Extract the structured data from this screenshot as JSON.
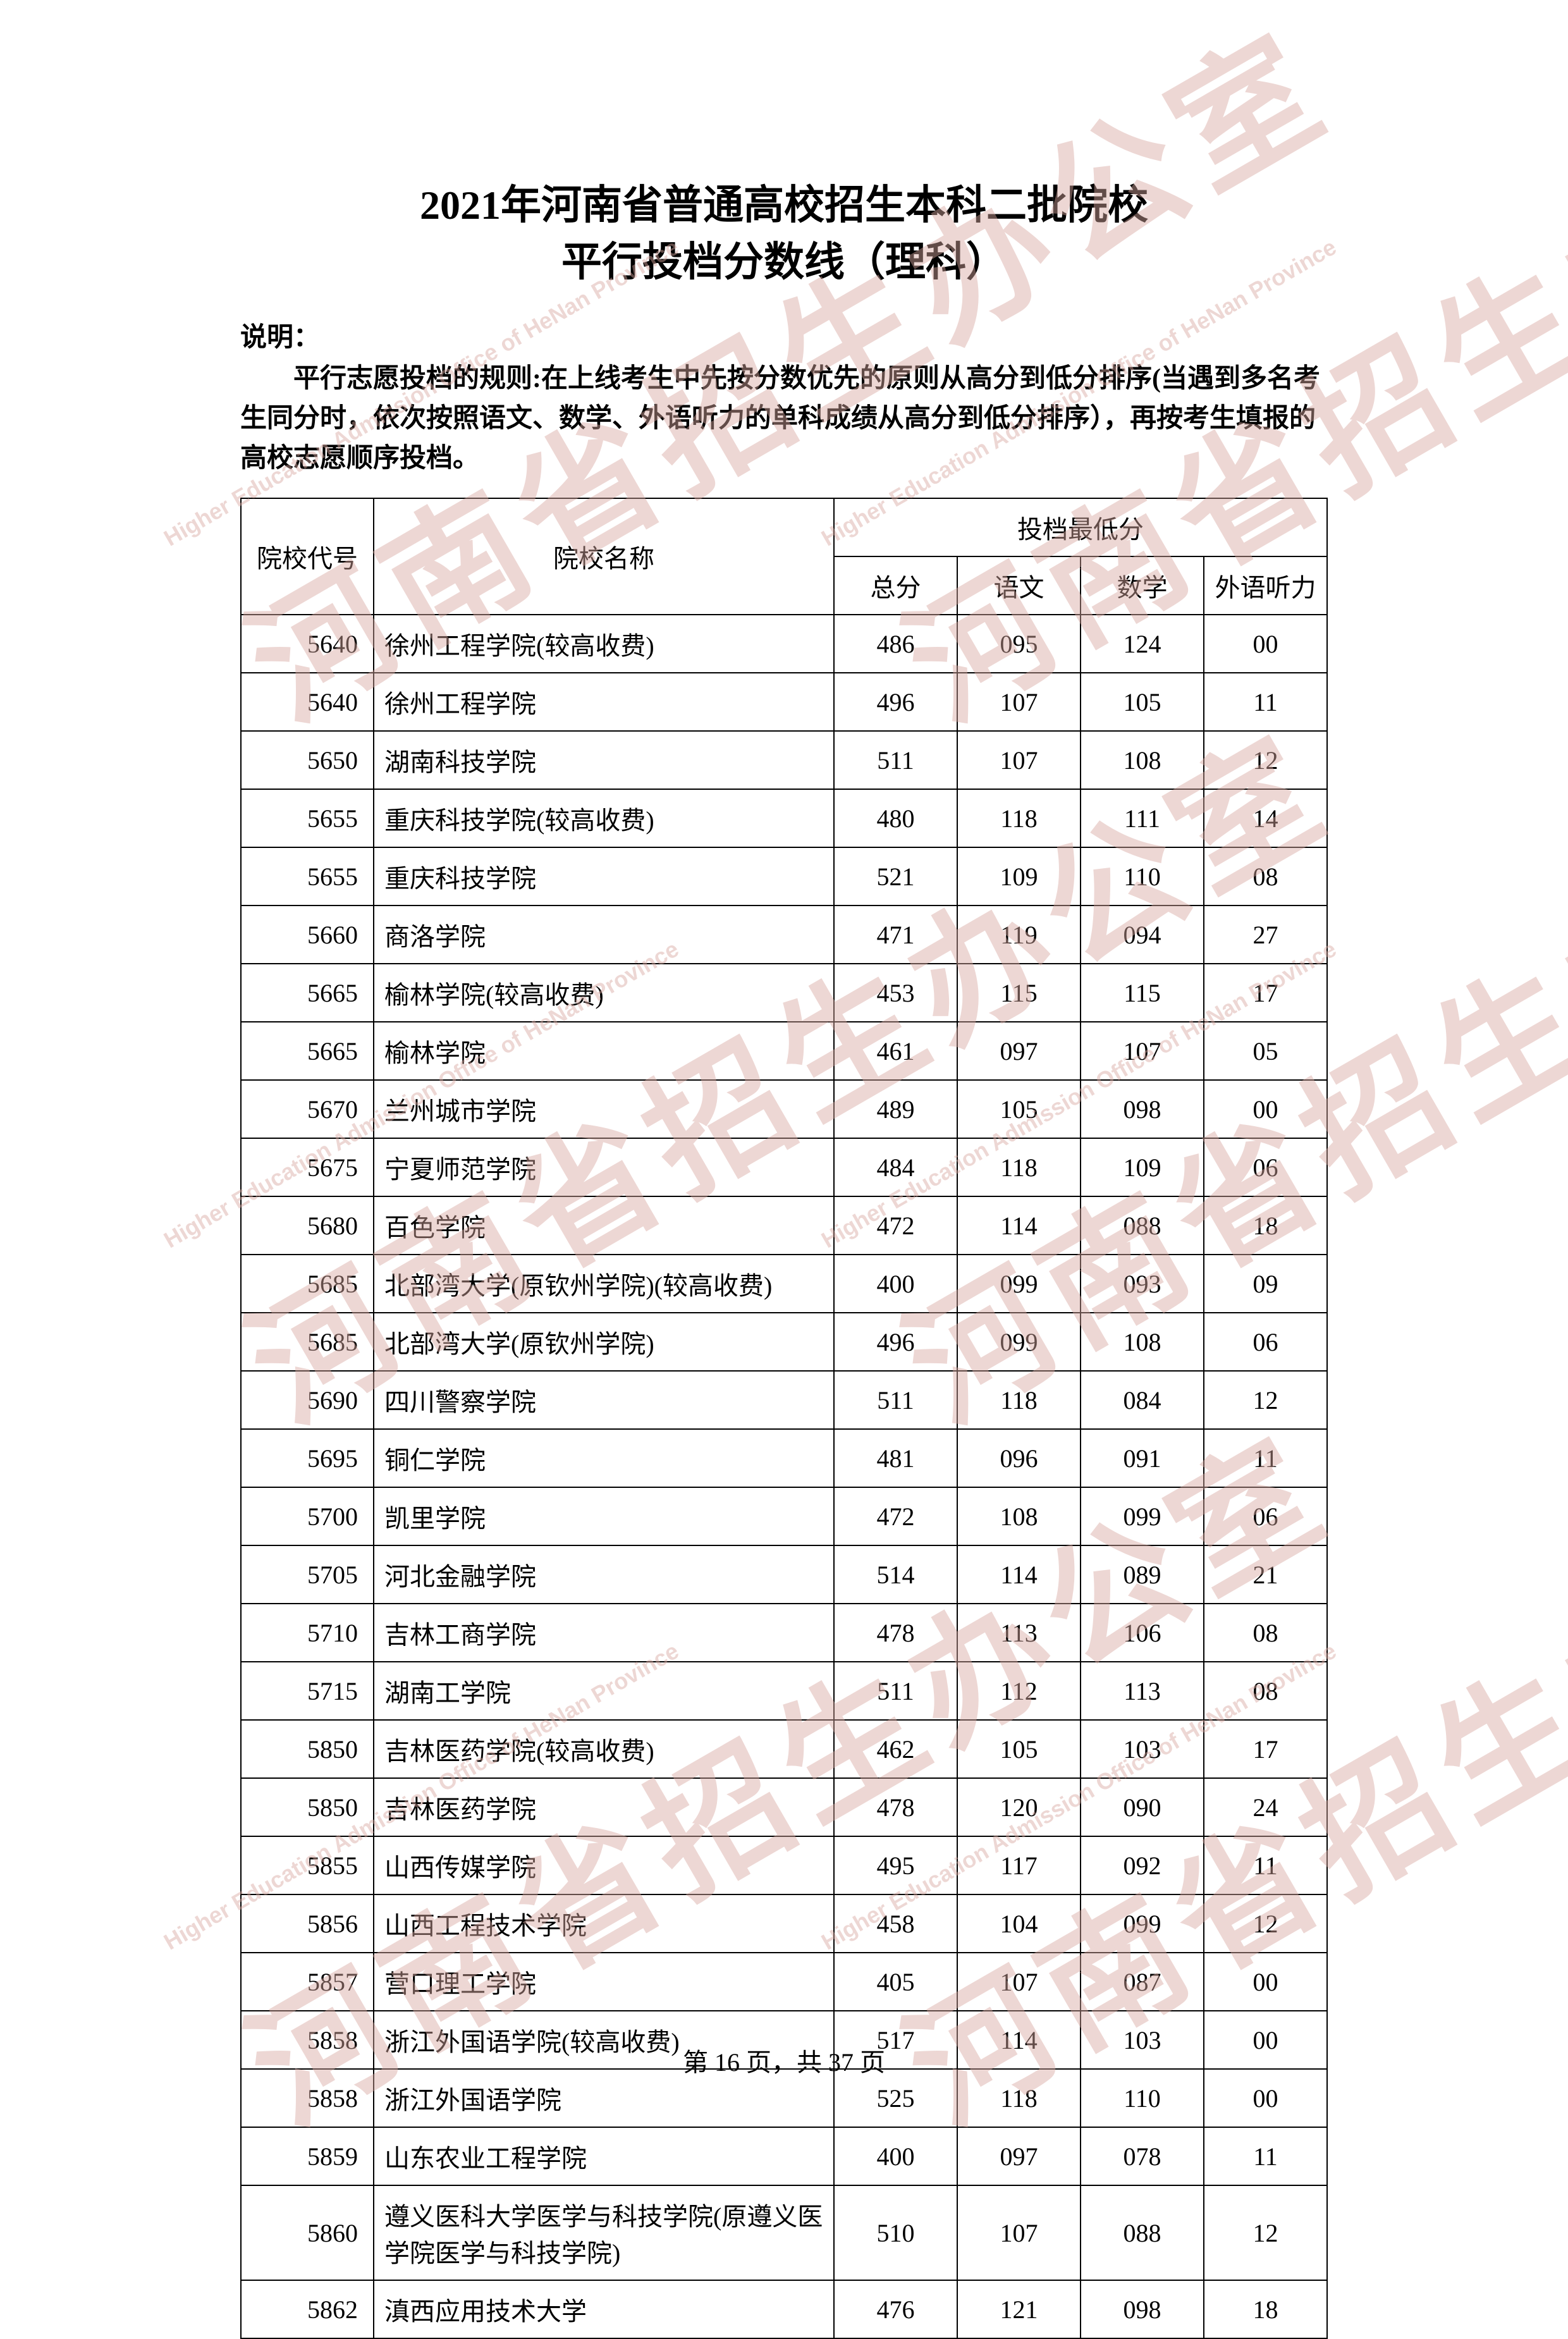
{
  "title": {
    "line1": "2021年河南省普通高校招生本科二批院校",
    "line2": "平行投档分数线（理科）"
  },
  "description": {
    "label": "说明：",
    "text": "平行志愿投档的规则:在上线考生中先按分数优先的原则从高分到低分排序(当遇到多名考生同分时，依次按照语文、数学、外语听力的单科成绩从高分到低分排序），再按考生填报的高校志愿顺序投档。"
  },
  "table": {
    "headers": {
      "code": "院校代号",
      "name": "院校名称",
      "group": "投档最低分",
      "total": "总分",
      "chinese": "语文",
      "math": "数学",
      "listening": "外语听力"
    },
    "rows": [
      {
        "code": "5640",
        "name": "徐州工程学院(较高收费)",
        "total": "486",
        "chinese": "095",
        "math": "124",
        "listening": "00"
      },
      {
        "code": "5640",
        "name": "徐州工程学院",
        "total": "496",
        "chinese": "107",
        "math": "105",
        "listening": "11"
      },
      {
        "code": "5650",
        "name": "湖南科技学院",
        "total": "511",
        "chinese": "107",
        "math": "108",
        "listening": "12"
      },
      {
        "code": "5655",
        "name": "重庆科技学院(较高收费)",
        "total": "480",
        "chinese": "118",
        "math": "111",
        "listening": "14"
      },
      {
        "code": "5655",
        "name": "重庆科技学院",
        "total": "521",
        "chinese": "109",
        "math": "110",
        "listening": "08"
      },
      {
        "code": "5660",
        "name": "商洛学院",
        "total": "471",
        "chinese": "119",
        "math": "094",
        "listening": "27"
      },
      {
        "code": "5665",
        "name": "榆林学院(较高收费)",
        "total": "453",
        "chinese": "115",
        "math": "115",
        "listening": "17"
      },
      {
        "code": "5665",
        "name": "榆林学院",
        "total": "461",
        "chinese": "097",
        "math": "107",
        "listening": "05"
      },
      {
        "code": "5670",
        "name": "兰州城市学院",
        "total": "489",
        "chinese": "105",
        "math": "098",
        "listening": "00"
      },
      {
        "code": "5675",
        "name": "宁夏师范学院",
        "total": "484",
        "chinese": "118",
        "math": "109",
        "listening": "06"
      },
      {
        "code": "5680",
        "name": "百色学院",
        "total": "472",
        "chinese": "114",
        "math": "088",
        "listening": "18"
      },
      {
        "code": "5685",
        "name": "北部湾大学(原钦州学院)(较高收费)",
        "total": "400",
        "chinese": "099",
        "math": "093",
        "listening": "09"
      },
      {
        "code": "5685",
        "name": "北部湾大学(原钦州学院)",
        "total": "496",
        "chinese": "099",
        "math": "108",
        "listening": "06"
      },
      {
        "code": "5690",
        "name": "四川警察学院",
        "total": "511",
        "chinese": "118",
        "math": "084",
        "listening": "12"
      },
      {
        "code": "5695",
        "name": "铜仁学院",
        "total": "481",
        "chinese": "096",
        "math": "091",
        "listening": "11"
      },
      {
        "code": "5700",
        "name": "凯里学院",
        "total": "472",
        "chinese": "108",
        "math": "099",
        "listening": "06"
      },
      {
        "code": "5705",
        "name": "河北金融学院",
        "total": "514",
        "chinese": "114",
        "math": "089",
        "listening": "21"
      },
      {
        "code": "5710",
        "name": "吉林工商学院",
        "total": "478",
        "chinese": "113",
        "math": "106",
        "listening": "08"
      },
      {
        "code": "5715",
        "name": "湖南工学院",
        "total": "511",
        "chinese": "112",
        "math": "113",
        "listening": "08"
      },
      {
        "code": "5850",
        "name": "吉林医药学院(较高收费)",
        "total": "462",
        "chinese": "105",
        "math": "103",
        "listening": "17"
      },
      {
        "code": "5850",
        "name": "吉林医药学院",
        "total": "478",
        "chinese": "120",
        "math": "090",
        "listening": "24"
      },
      {
        "code": "5855",
        "name": "山西传媒学院",
        "total": "495",
        "chinese": "117",
        "math": "092",
        "listening": "11"
      },
      {
        "code": "5856",
        "name": "山西工程技术学院",
        "total": "458",
        "chinese": "104",
        "math": "099",
        "listening": "12"
      },
      {
        "code": "5857",
        "name": "营口理工学院",
        "total": "405",
        "chinese": "107",
        "math": "087",
        "listening": "00"
      },
      {
        "code": "5858",
        "name": "浙江外国语学院(较高收费)",
        "total": "517",
        "chinese": "114",
        "math": "103",
        "listening": "00"
      },
      {
        "code": "5858",
        "name": "浙江外国语学院",
        "total": "525",
        "chinese": "118",
        "math": "110",
        "listening": "00"
      },
      {
        "code": "5859",
        "name": "山东农业工程学院",
        "total": "400",
        "chinese": "097",
        "math": "078",
        "listening": "11"
      },
      {
        "code": "5860",
        "name": "遵义医科大学医学与科技学院(原遵义医学院医学与科技学院)",
        "total": "510",
        "chinese": "107",
        "math": "088",
        "listening": "12"
      },
      {
        "code": "5862",
        "name": "滇西应用技术大学",
        "total": "476",
        "chinese": "121",
        "math": "098",
        "listening": "18"
      }
    ]
  },
  "footer": {
    "text": "第 16 页，共 37 页"
  },
  "watermarks": {
    "chinese": "河南省招生办公室",
    "english": "Higher Education Admission Office of HeNan Province"
  }
}
